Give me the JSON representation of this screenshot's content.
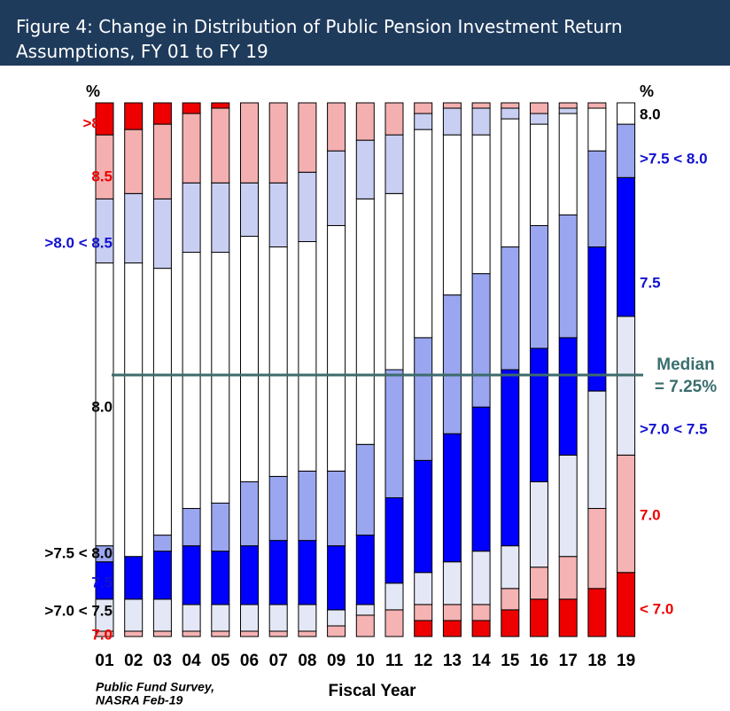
{
  "chart_data": {
    "type": "stacked_bar",
    "title": "Figure 4: Change in Distribution of Public Pension Investment Return Assumptions, FY 01 to FY 19",
    "xlabel": "Fiscal Year",
    "unit": "%",
    "source": [
      "Public Fund Survey,",
      "NASRA Feb-19"
    ],
    "annotation": [
      "Median",
      "= 7.25%"
    ],
    "reference_line": 49,
    "ylim": [
      0,
      100
    ],
    "categories": [
      "01",
      "02",
      "03",
      "04",
      "05",
      "06",
      "07",
      "08",
      "09",
      "10",
      "11",
      "12",
      "13",
      "14",
      "15",
      "16",
      "17",
      "18",
      "19"
    ],
    "series": [
      {
        "name": "< 7.0",
        "color": "#ee0000",
        "values": [
          0,
          0,
          0,
          0,
          0,
          0,
          0,
          0,
          0,
          0,
          0,
          3,
          3,
          3,
          5,
          7,
          7,
          9,
          12
        ]
      },
      {
        "name": "7.0",
        "color": "#f6b3b3",
        "values": [
          1,
          1,
          1,
          1,
          1,
          1,
          1,
          1,
          2,
          4,
          5,
          3,
          3,
          3,
          4,
          6,
          8,
          15,
          22
        ]
      },
      {
        "name": ">7.0 < 7.5",
        "color": "#e4e7f5",
        "values": [
          6,
          6,
          6,
          5,
          5,
          5,
          5,
          5,
          3,
          2,
          5,
          6,
          8,
          10,
          8,
          16,
          19,
          22,
          26
        ]
      },
      {
        "name": "7.5",
        "color": "#0000ff",
        "values": [
          7,
          8,
          9,
          11,
          10,
          11,
          12,
          12,
          12,
          13,
          16,
          21,
          24,
          27,
          33,
          25,
          22,
          27,
          26
        ]
      },
      {
        "name": ">7.5 < 8.0",
        "color": "#9aa6ef",
        "values": [
          3,
          0,
          3,
          7,
          9,
          12,
          12,
          13,
          14,
          17,
          24,
          23,
          26,
          25,
          23,
          23,
          23,
          18,
          10
        ]
      },
      {
        "name": "8.0",
        "color": "#ffffff",
        "values": [
          53,
          55,
          50,
          48,
          47,
          46,
          43,
          43,
          46,
          46,
          33,
          39,
          30,
          26,
          24,
          19,
          19,
          8,
          4
        ]
      },
      {
        "name": ">8.0 < 8.5",
        "color": "#c9cff2",
        "values": [
          12,
          13,
          13,
          13,
          13,
          10,
          12,
          13,
          14,
          11,
          11,
          3,
          5,
          5,
          2,
          2,
          1,
          0,
          0
        ]
      },
      {
        "name": "8.5",
        "color": "#f4b0b0",
        "values": [
          12,
          12,
          14,
          13,
          14,
          15,
          15,
          13,
          9,
          7,
          6,
          2,
          1,
          1,
          1,
          2,
          1,
          1,
          0
        ]
      },
      {
        "name": ">8.5",
        "color": "#ee0000",
        "values": [
          6,
          5,
          4,
          2,
          1,
          0,
          0,
          0,
          0,
          0,
          0,
          0,
          0,
          0,
          0,
          0,
          0,
          0,
          0
        ]
      }
    ]
  }
}
